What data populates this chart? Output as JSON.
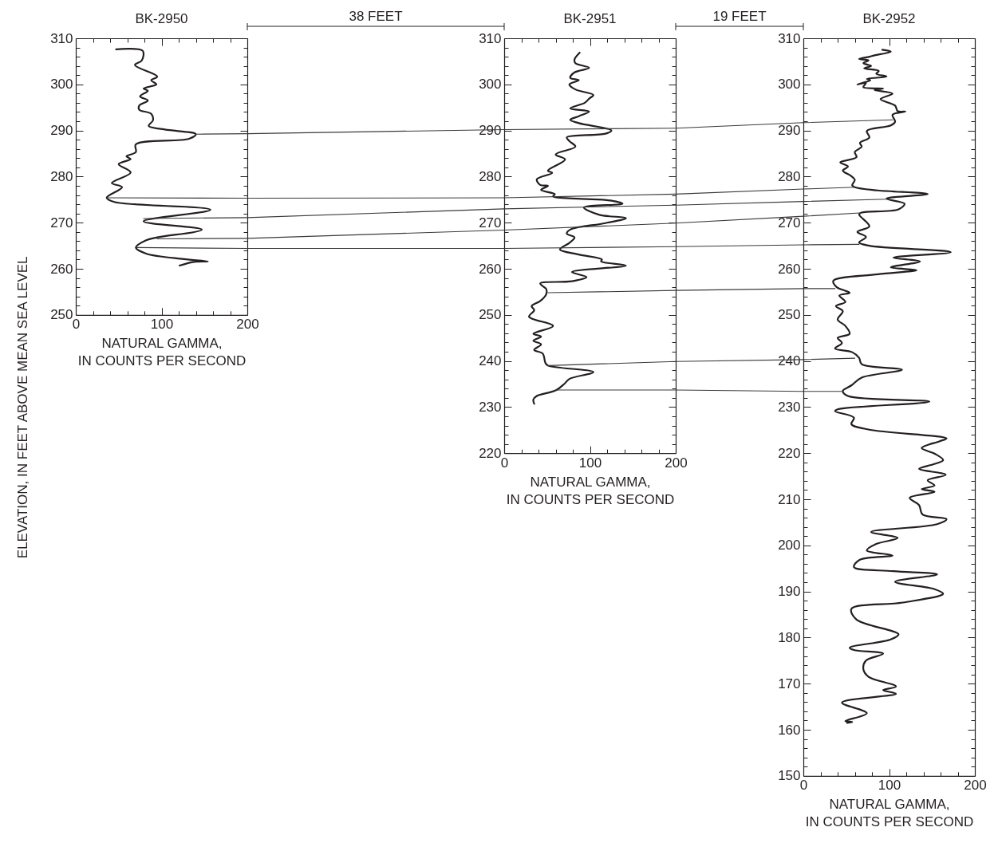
{
  "chart_data": [
    {
      "type": "line",
      "title": "BK-2950",
      "xlabel": "NATURAL GAMMA,\nIN COUNTS PER SECOND",
      "ylabel": "ELEVATION, IN FEET ABOVE MEAN SEA LEVEL",
      "annotations": [
        "38 FEET"
      ],
      "xlim": [
        0,
        200
      ],
      "ylim": [
        250,
        310
      ],
      "xticks": [
        0,
        {
          "value": 20,
          "label": null
        },
        {
          "value": 40,
          "label": null
        },
        {
          "value": 60,
          "label": null
        },
        {
          "value": 80,
          "label": null
        },
        100,
        {
          "value": 120,
          "label": null
        },
        {
          "value": 140,
          "label": null
        },
        {
          "value": 160,
          "label": null
        },
        {
          "value": 180,
          "label": null
        },
        200
      ],
      "yticks": [
        250,
        {
          "value": 252,
          "label": null
        },
        {
          "value": 254,
          "label": null
        },
        {
          "value": 256,
          "label": null
        },
        {
          "value": 258,
          "label": null
        },
        260,
        {
          "value": 262,
          "label": null
        },
        {
          "value": 264,
          "label": null
        },
        {
          "value": 266,
          "label": null
        },
        {
          "value": 268,
          "label": null
        },
        270,
        {
          "value": 272,
          "label": null
        },
        {
          "value": 274,
          "label": null
        },
        {
          "value": 276,
          "label": null
        },
        {
          "value": 278,
          "label": null
        },
        280,
        {
          "value": 282,
          "label": null
        },
        {
          "value": 284,
          "label": null
        },
        {
          "value": 286,
          "label": null
        },
        {
          "value": 288,
          "label": null
        },
        290,
        {
          "value": 292,
          "label": null
        },
        {
          "value": 294,
          "label": null
        },
        {
          "value": 296,
          "label": null
        },
        {
          "value": 298,
          "label": null
        },
        300,
        {
          "value": 302,
          "label": null
        },
        {
          "value": 304,
          "label": null
        },
        {
          "value": 306,
          "label": null
        },
        {
          "value": 308,
          "label": null
        },
        310
      ],
      "series": [
        {
          "color": "#231f20",
          "x": [
            47,
            78,
            77,
            69,
            95,
            88,
            94,
            79,
            84,
            75,
            84,
            74,
            74,
            88,
            90,
            85,
            104,
            140,
            132,
            70,
            70,
            59,
            64,
            50,
            64,
            42,
            54,
            36,
            45,
            157,
            79,
            147,
            95,
            82,
            70,
            82,
            126,
            154,
            138,
            121
          ],
          "values": [
            307.6,
            307.3,
            305.2,
            304.2,
            301.7,
            300.9,
            300,
            299.1,
            298.6,
            297.4,
            296.5,
            295.4,
            294.5,
            293.6,
            292.2,
            291,
            290.2,
            289.2,
            288.2,
            287,
            285.3,
            284.4,
            283.8,
            282.7,
            280.9,
            278.6,
            277.7,
            275.4,
            274.5,
            272.8,
            270.3,
            268.5,
            266.8,
            266.2,
            264.6,
            263.3,
            262.1,
            261.6,
            261.5,
            260.7
          ]
        },
        {
          "type": "line",
          "color": "#3a3a3a",
          "x": [
            140,
            200
          ],
          "values": [
            289.2,
            289.3
          ]
        },
        {
          "type": "line",
          "color": "#3a3a3a",
          "x": [
            36,
            200
          ],
          "values": [
            275.4,
            275.3
          ]
        },
        {
          "type": "line",
          "color": "#3a3a3a",
          "x": [
            79,
            200
          ],
          "values": [
            270.9,
            271.1
          ]
        },
        {
          "type": "line",
          "color": "#3a3a3a",
          "x": [
            95,
            200
          ],
          "values": [
            266.5,
            266.6
          ]
        },
        {
          "type": "line",
          "color": "#3a3a3a",
          "x": [
            71,
            200
          ],
          "values": [
            264.6,
            264.4
          ]
        }
      ]
    },
    {
      "type": "line",
      "title": "BK-2951",
      "xlabel": "NATURAL GAMMA,\nIN COUNTS PER SECOND",
      "annotations": [
        "19 FEET"
      ],
      "xlim": [
        0,
        200
      ],
      "ylim": [
        220,
        310
      ],
      "xticks": [
        0,
        {
          "value": 20,
          "label": null
        },
        {
          "value": 40,
          "label": null
        },
        {
          "value": 60,
          "label": null
        },
        {
          "value": 80,
          "label": null
        },
        100,
        {
          "value": 120,
          "label": null
        },
        {
          "value": 140,
          "label": null
        },
        {
          "value": 160,
          "label": null
        },
        {
          "value": 180,
          "label": null
        },
        200
      ],
      "yticks": [
        220,
        {
          "value": 222,
          "label": null
        },
        {
          "value": 224,
          "label": null
        },
        {
          "value": 226,
          "label": null
        },
        {
          "value": 228,
          "label": null
        },
        230,
        {
          "value": 232,
          "label": null
        },
        {
          "value": 234,
          "label": null
        },
        {
          "value": 236,
          "label": null
        },
        {
          "value": 238,
          "label": null
        },
        240,
        {
          "value": 242,
          "label": null
        },
        {
          "value": 244,
          "label": null
        },
        {
          "value": 246,
          "label": null
        },
        {
          "value": 248,
          "label": null
        },
        250,
        {
          "value": 252,
          "label": null
        },
        {
          "value": 254,
          "label": null
        },
        {
          "value": 256,
          "label": null
        },
        {
          "value": 258,
          "label": null
        },
        260,
        {
          "value": 262,
          "label": null
        },
        {
          "value": 264,
          "label": null
        },
        {
          "value": 266,
          "label": null
        },
        {
          "value": 268,
          "label": null
        },
        270,
        {
          "value": 272,
          "label": null
        },
        {
          "value": 274,
          "label": null
        },
        {
          "value": 276,
          "label": null
        },
        {
          "value": 278,
          "label": null
        },
        280,
        {
          "value": 282,
          "label": null
        },
        {
          "value": 284,
          "label": null
        },
        {
          "value": 286,
          "label": null
        },
        {
          "value": 288,
          "label": null
        },
        290,
        {
          "value": 292,
          "label": null
        },
        {
          "value": 294,
          "label": null
        },
        {
          "value": 296,
          "label": null
        },
        {
          "value": 298,
          "label": null
        },
        300,
        {
          "value": 302,
          "label": null
        },
        {
          "value": 304,
          "label": null
        },
        {
          "value": 306,
          "label": null
        },
        {
          "value": 308,
          "label": null
        },
        310
      ],
      "series": [
        {
          "color": "#231f20",
          "x": [
            88,
            82,
            83,
            99,
            82,
            77,
            87,
            76,
            83,
            104,
            99,
            94,
            77,
            99,
            87,
            77,
            87,
            125,
            118,
            73,
            76,
            83,
            60,
            71,
            51,
            56,
            38,
            42,
            51,
            43,
            59,
            57,
            87,
            124,
            138,
            93,
            111,
            142,
            118,
            77,
            73,
            82,
            76,
            65,
            87,
            114,
            113,
            142,
            79,
            96,
            79,
            42,
            49,
            49,
            42,
            32,
            35,
            29,
            57,
            34,
            43,
            34,
            43,
            35,
            45,
            48,
            51,
            104,
            76,
            70,
            60,
            38,
            34,
            35
          ],
          "values": [
            306.9,
            305.4,
            304.6,
            303.6,
            302.6,
            301.4,
            300.9,
            300,
            298.9,
            297.7,
            296.9,
            296,
            294.8,
            294.1,
            293.1,
            292.3,
            291.6,
            290,
            289.3,
            288.5,
            287.7,
            286.5,
            284.8,
            283.7,
            281.3,
            280.8,
            279.4,
            278.2,
            278,
            277.1,
            276.2,
            275.7,
            275.2,
            274.8,
            274.1,
            273.3,
            271.7,
            271,
            269.9,
            268.5,
            267.6,
            266.8,
            265.6,
            264.2,
            263.1,
            262,
            261.6,
            260.7,
            259.3,
            258.2,
            257.3,
            256.8,
            255.6,
            254.5,
            253,
            251.9,
            251,
            249.6,
            247.6,
            245.9,
            245.3,
            244.4,
            243.6,
            242.4,
            241.6,
            239.6,
            239,
            237.6,
            236.1,
            235,
            233.6,
            232.4,
            231.6,
            230.7
          ]
        },
        {
          "type": "line",
          "color": "#3a3a3a",
          "x": [
            0,
            200
          ],
          "values": [
            290.2,
            290.5
          ]
        },
        {
          "type": "line",
          "color": "#3a3a3a",
          "x": [
            0,
            200
          ],
          "values": [
            275.4,
            276.2
          ]
        },
        {
          "type": "line",
          "color": "#3a3a3a",
          "x": [
            0,
            200
          ],
          "values": [
            273,
            273.8
          ]
        },
        {
          "type": "line",
          "color": "#3a3a3a",
          "x": [
            0,
            200
          ],
          "values": [
            268.4,
            269.9
          ]
        },
        {
          "type": "line",
          "color": "#3a3a3a",
          "x": [
            0,
            200
          ],
          "values": [
            264.4,
            264.8
          ]
        },
        {
          "type": "line",
          "color": "#3a3a3a",
          "x": [
            51,
            200
          ],
          "values": [
            254.8,
            255.3
          ]
        },
        {
          "type": "line",
          "color": "#3a3a3a",
          "x": [
            51,
            200
          ],
          "values": [
            239,
            239.9
          ]
        },
        {
          "type": "line",
          "color": "#3a3a3a",
          "x": [
            60,
            200
          ],
          "values": [
            233.7,
            233.7
          ]
        }
      ]
    },
    {
      "type": "line",
      "title": "BK-2952",
      "xlabel": "NATURAL GAMMA,\nIN COUNTS PER SECOND",
      "xlim": [
        0,
        200
      ],
      "ylim": [
        150,
        310
      ],
      "xticks": [
        0,
        {
          "value": 20,
          "label": null
        },
        {
          "value": 40,
          "label": null
        },
        {
          "value": 60,
          "label": null
        },
        {
          "value": 80,
          "label": null
        },
        100,
        {
          "value": 120,
          "label": null
        },
        {
          "value": 140,
          "label": null
        },
        {
          "value": 160,
          "label": null
        },
        {
          "value": 180,
          "label": null
        },
        200
      ],
      "yticks": [
        150,
        {
          "value": 152,
          "label": null
        },
        {
          "value": 154,
          "label": null
        },
        {
          "value": 156,
          "label": null
        },
        {
          "value": 158,
          "label": null
        },
        160,
        {
          "value": 162,
          "label": null
        },
        {
          "value": 164,
          "label": null
        },
        {
          "value": 166,
          "label": null
        },
        {
          "value": 168,
          "label": null
        },
        170,
        {
          "value": 172,
          "label": null
        },
        {
          "value": 174,
          "label": null
        },
        {
          "value": 176,
          "label": null
        },
        {
          "value": 178,
          "label": null
        },
        180,
        {
          "value": 182,
          "label": null
        },
        {
          "value": 184,
          "label": null
        },
        {
          "value": 186,
          "label": null
        },
        {
          "value": 188,
          "label": null
        },
        190,
        {
          "value": 192,
          "label": null
        },
        {
          "value": 194,
          "label": null
        },
        {
          "value": 196,
          "label": null
        },
        {
          "value": 198,
          "label": null
        },
        200,
        {
          "value": 202,
          "label": null
        },
        {
          "value": 204,
          "label": null
        },
        {
          "value": 206,
          "label": null
        },
        {
          "value": 208,
          "label": null
        },
        210,
        {
          "value": 212,
          "label": null
        },
        {
          "value": 214,
          "label": null
        },
        {
          "value": 216,
          "label": null
        },
        {
          "value": 218,
          "label": null
        },
        220,
        {
          "value": 222,
          "label": null
        },
        {
          "value": 224,
          "label": null
        },
        {
          "value": 226,
          "label": null
        },
        {
          "value": 228,
          "label": null
        },
        230,
        {
          "value": 232,
          "label": null
        },
        {
          "value": 234,
          "label": null
        },
        {
          "value": 236,
          "label": null
        },
        {
          "value": 238,
          "label": null
        },
        240,
        {
          "value": 242,
          "label": null
        },
        {
          "value": 244,
          "label": null
        },
        {
          "value": 246,
          "label": null
        },
        {
          "value": 248,
          "label": null
        },
        250,
        {
          "value": 252,
          "label": null
        },
        {
          "value": 254,
          "label": null
        },
        {
          "value": 256,
          "label": null
        },
        {
          "value": 258,
          "label": null
        },
        260,
        {
          "value": 262,
          "label": null
        },
        {
          "value": 264,
          "label": null
        },
        {
          "value": 266,
          "label": null
        },
        {
          "value": 268,
          "label": null
        },
        270,
        {
          "value": 272,
          "label": null
        },
        {
          "value": 274,
          "label": null
        },
        {
          "value": 276,
          "label": null
        },
        {
          "value": 278,
          "label": null
        },
        280,
        {
          "value": 282,
          "label": null
        },
        {
          "value": 284,
          "label": null
        },
        {
          "value": 286,
          "label": null
        },
        {
          "value": 288,
          "label": null
        },
        290,
        {
          "value": 292,
          "label": null
        },
        {
          "value": 294,
          "label": null
        },
        {
          "value": 296,
          "label": null
        },
        {
          "value": 298,
          "label": null
        },
        300,
        {
          "value": 302,
          "label": null
        },
        {
          "value": 304,
          "label": null
        },
        {
          "value": 306,
          "label": null
        },
        {
          "value": 308,
          "label": null
        },
        310
      ],
      "series": [
        {
          "color": "#231f20",
          "x": [
            92,
            102,
            83,
            77,
            65,
            76,
            70,
            79,
            71,
            88,
            85,
            97,
            74,
            78,
            63,
            73,
            70,
            93,
            83,
            104,
            90,
            107,
            110,
            119,
            104,
            107,
            102,
            74,
            77,
            66,
            68,
            60,
            62,
            43,
            52,
            46,
            56,
            60,
            57,
            60,
            87,
            145,
            97,
            118,
            111,
            68,
            65,
            77,
            63,
            73,
            65,
            77,
            172,
            105,
            136,
            102,
            132,
            87,
            35,
            39,
            54,
            42,
            49,
            38,
            46,
            40,
            49,
            54,
            40,
            45,
            37,
            57,
            65,
            68,
            115,
            68,
            56,
            46,
            52,
            147,
            40,
            37,
            59,
            56,
            77,
            167,
            159,
            138,
            153,
            163,
            152,
            135,
            166,
            145,
            153,
            138,
            153,
            124,
            135,
            139,
            167,
            156,
            79,
            110,
            85,
            74,
            104,
            66,
            59,
            105,
            156,
            107,
            153,
            163,
            116,
            56,
            62,
            111,
            102,
            54,
            59,
            93,
            73,
            70,
            76,
            108,
            93,
            108,
            45,
            74,
            49,
            57,
            51
          ],
          "values": [
            307.5,
            307.1,
            306.3,
            306,
            305.5,
            305.2,
            304.6,
            304,
            303.5,
            302.9,
            302.3,
            301.7,
            301.2,
            300.9,
            300,
            300.3,
            299.4,
            299.1,
            298.8,
            298,
            296.8,
            295.4,
            294.2,
            294.1,
            293.4,
            291.9,
            291.1,
            289.9,
            288.5,
            287.3,
            286.5,
            285.3,
            284.2,
            283.1,
            282.2,
            281.3,
            280.1,
            279.3,
            278.1,
            277.7,
            277,
            276.2,
            275.2,
            274.1,
            272.9,
            272.2,
            271.8,
            269.2,
            268,
            266.9,
            265.7,
            265,
            263.6,
            262.4,
            261.6,
            260.3,
            259.7,
            258.8,
            257.4,
            256,
            254.8,
            254.2,
            252.8,
            251.9,
            250.8,
            249,
            247.6,
            245.9,
            245,
            243.9,
            242.7,
            241.9,
            240.7,
            239.3,
            238.1,
            236.4,
            234.7,
            233.5,
            232.4,
            231.2,
            229.5,
            229.1,
            227.7,
            226.3,
            225.1,
            223.2,
            222.6,
            221.1,
            219.9,
            218.5,
            217.6,
            216.6,
            215.3,
            214.1,
            213,
            212.2,
            211.6,
            210.3,
            208.7,
            206.7,
            205.7,
            204.6,
            202.9,
            201.6,
            200.3,
            198.9,
            197.8,
            196.9,
            195.3,
            194.4,
            193.7,
            192.1,
            190.5,
            189.5,
            187.6,
            186.2,
            183.9,
            180.7,
            179.6,
            177.8,
            177.3,
            176.5,
            175,
            173.1,
            171.5,
            169.4,
            168.6,
            167.8,
            165.9,
            163.6,
            161.9,
            161.7,
            161.5
          ]
        },
        {
          "type": "line",
          "color": "#3a3a3a",
          "x": [
            0,
            104
          ],
          "values": [
            291.7,
            292.3
          ]
        },
        {
          "type": "line",
          "color": "#3a3a3a",
          "x": [
            0,
            60
          ],
          "values": [
            277.3,
            277.7
          ]
        },
        {
          "type": "line",
          "color": "#3a3a3a",
          "x": [
            0,
            97
          ],
          "values": [
            274.6,
            275.1
          ]
        },
        {
          "type": "line",
          "color": "#3a3a3a",
          "x": [
            0,
            66
          ],
          "values": [
            271.4,
            272.1
          ]
        },
        {
          "type": "line",
          "color": "#3a3a3a",
          "x": [
            0,
            65
          ],
          "values": [
            265.2,
            265.3
          ]
        },
        {
          "type": "line",
          "color": "#3a3a3a",
          "x": [
            0,
            37
          ],
          "values": [
            255.7,
            255.7
          ]
        },
        {
          "type": "line",
          "color": "#3a3a3a",
          "x": [
            0,
            60
          ],
          "values": [
            240.3,
            240.6
          ]
        },
        {
          "type": "line",
          "color": "#3a3a3a",
          "x": [
            0,
            45
          ],
          "values": [
            233.4,
            233.4
          ]
        }
      ]
    }
  ]
}
